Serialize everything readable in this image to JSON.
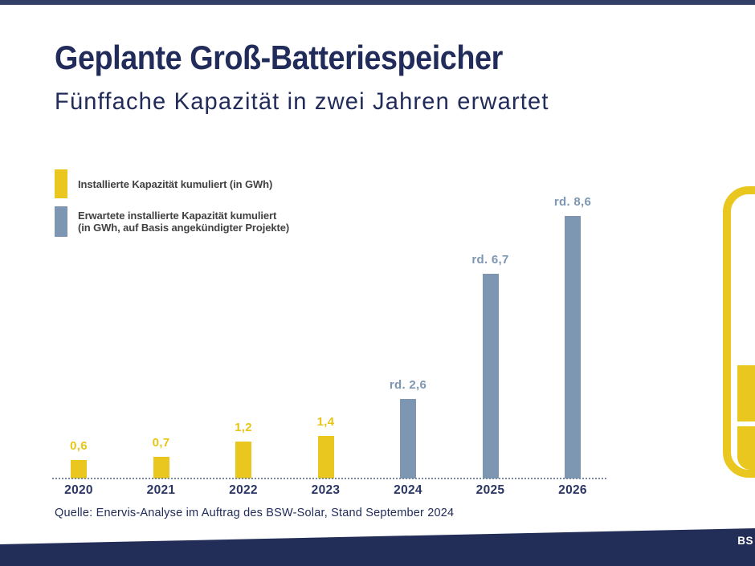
{
  "page": {
    "title": "Geplante Groß-Batteriespeicher",
    "subtitle": "Fünffache Kapazität in zwei Jahren erwartet",
    "source": "Quelle: Enervis-Analyse im Auftrag des BSW-Solar, Stand September 2024",
    "footer_logo_text": "BS"
  },
  "legend": {
    "installed": {
      "line1": "Installierte Kapazität kumuliert (in GWh)"
    },
    "expected": {
      "line1": "Erwartete installierte Kapazität kumuliert",
      "line2": "(in GWh, auf Basis angekündigter Projekte)"
    }
  },
  "chart_data": {
    "type": "bar",
    "title": "Geplante Groß-Batteriespeicher",
    "subtitle": "Fünffache Kapazität in zwei Jahren erwartet",
    "categories": [
      "2020",
      "2021",
      "2022",
      "2023",
      "2024",
      "2025",
      "2026"
    ],
    "series": [
      {
        "name": "Installierte Kapazität kumuliert (in GWh)",
        "color": "#E9C71E",
        "values": [
          0.6,
          0.7,
          1.2,
          1.4,
          null,
          null,
          null
        ]
      },
      {
        "name": "Erwartete installierte Kapazität kumuliert (in GWh, auf Basis angekündigter Projekte)",
        "color": "#7D97B2",
        "values": [
          null,
          null,
          null,
          null,
          2.6,
          6.7,
          8.6
        ]
      }
    ],
    "bars": [
      {
        "year": "2020",
        "value": 0.6,
        "label": "0,6",
        "type": "installed"
      },
      {
        "year": "2021",
        "value": 0.7,
        "label": "0,7",
        "type": "installed"
      },
      {
        "year": "2022",
        "value": 1.2,
        "label": "1,2",
        "type": "installed"
      },
      {
        "year": "2023",
        "value": 1.4,
        "label": "1,4",
        "type": "installed"
      },
      {
        "year": "2024",
        "value": 2.6,
        "label": "rd. 2,6",
        "type": "expected"
      },
      {
        "year": "2025",
        "value": 6.7,
        "label": "rd. 6,7",
        "type": "expected"
      },
      {
        "year": "2026",
        "value": 8.6,
        "label": "rd. 8,6",
        "type": "expected"
      }
    ],
    "xlabel": "",
    "ylabel": "",
    "ylim": [
      0,
      9
    ],
    "grid": false,
    "legend_position": "top-left"
  },
  "colors": {
    "navy": "#212C5A",
    "footer_navy": "#222E58",
    "topbar_navy": "#323E66",
    "yellow": "#E9C71E",
    "bluegray": "#7D97B2",
    "legend_text": "#414141",
    "axis_dots": "#7A89A6"
  }
}
